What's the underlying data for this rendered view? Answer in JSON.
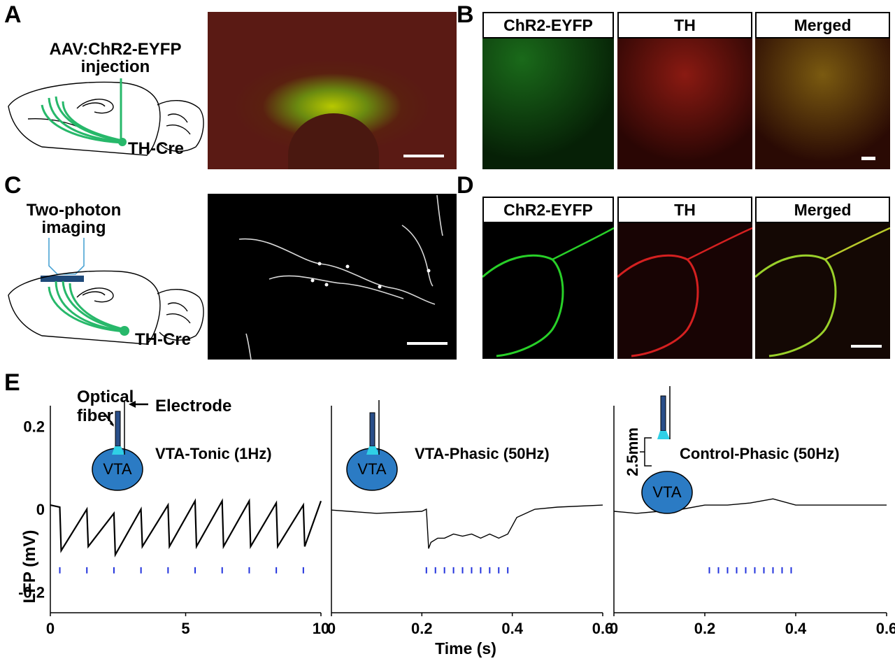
{
  "panel_letters": {
    "A": "A",
    "B": "B",
    "C": "C",
    "D": "D",
    "E": "E"
  },
  "panelA": {
    "injection_line1": "AAV:ChR2-EYFP",
    "injection_line2": "injection",
    "mouse_line": "TH-Cre"
  },
  "panelB": {
    "headers": [
      "ChR2-EYFP",
      "TH",
      "Merged"
    ]
  },
  "panelC": {
    "imaging_line1": "Two-photon",
    "imaging_line2": "imaging",
    "mouse_line": "TH-Cre"
  },
  "panelD": {
    "headers": [
      "ChR2-EYFP",
      "TH",
      "Merged"
    ]
  },
  "panelE": {
    "ylabel": "LFP (mV)",
    "ytick_labels": [
      "0.2",
      "0",
      "-0.2"
    ],
    "xlabel": "Time (s)",
    "optical_fiber_line1": "Optical",
    "optical_fiber_line2": "fiber",
    "electrode_label": "Electrode",
    "vta_label": "VTA",
    "distance_label": "2.5mm",
    "colors": {
      "trace": "#000000",
      "stim": "#2233dd",
      "vta": "#2b7bc4",
      "fiber_tip": "#2fd0e6",
      "fiber": "#2a4f8a"
    }
  },
  "chart_data": [
    {
      "type": "line",
      "title": "VTA-Tonic (1Hz)",
      "xlabel": "",
      "ylabel": "LFP (mV)",
      "xlim": [
        0,
        10
      ],
      "ylim": [
        -0.25,
        0.25
      ],
      "xticks": [
        "0",
        "5",
        "10"
      ],
      "yticks": [
        "0.2",
        "0",
        "-0.2"
      ],
      "stim_times": [
        0.35,
        1.35,
        2.35,
        3.35,
        4.35,
        5.35,
        6.35,
        7.35,
        8.35,
        9.35
      ],
      "series": [
        {
          "x": [
            0,
            0.35,
            0.4,
            1.35,
            1.4,
            2.35,
            2.4,
            3.35,
            3.4,
            4.35,
            4.4,
            5.35,
            5.4,
            6.35,
            6.4,
            7.35,
            7.4,
            8.35,
            8.4,
            9.35,
            9.4,
            10
          ],
          "y": [
            0.01,
            0.005,
            -0.1,
            0.0,
            -0.09,
            -0.01,
            -0.11,
            0.0,
            -0.09,
            0.01,
            -0.09,
            0.02,
            -0.09,
            0.02,
            -0.09,
            0.02,
            -0.09,
            0.015,
            -0.09,
            0.01,
            -0.09,
            0.02
          ]
        }
      ]
    },
    {
      "type": "line",
      "title": "VTA-Phasic (50Hz)",
      "xlabel": "Time (s)",
      "ylabel": "",
      "xlim": [
        0,
        0.6
      ],
      "ylim": [
        -0.25,
        0.25
      ],
      "xticks": [
        "0",
        "0.2",
        "0.4",
        "0.6"
      ],
      "stim_times": [
        0.21,
        0.23,
        0.25,
        0.27,
        0.29,
        0.31,
        0.33,
        0.35,
        0.37,
        0.39
      ],
      "series": [
        {
          "x": [
            0,
            0.1,
            0.2,
            0.21,
            0.215,
            0.22,
            0.235,
            0.25,
            0.27,
            0.29,
            0.31,
            0.33,
            0.35,
            0.37,
            0.39,
            0.41,
            0.45,
            0.5,
            0.6
          ],
          "y": [
            -0.002,
            -0.01,
            -0.005,
            0.0,
            -0.095,
            -0.08,
            -0.07,
            -0.07,
            -0.06,
            -0.065,
            -0.06,
            -0.07,
            -0.06,
            -0.07,
            -0.06,
            -0.02,
            0.0,
            0.005,
            0.01
          ]
        }
      ]
    },
    {
      "type": "line",
      "title": "Control-Phasic (50Hz)",
      "xlabel": "",
      "ylabel": "",
      "xlim": [
        0,
        0.6
      ],
      "ylim": [
        -0.25,
        0.25
      ],
      "xticks": [
        "0",
        "0.2",
        "0.4",
        "0.6"
      ],
      "stim_times": [
        0.21,
        0.23,
        0.25,
        0.27,
        0.29,
        0.31,
        0.33,
        0.35,
        0.37,
        0.39
      ],
      "series": [
        {
          "x": [
            0,
            0.05,
            0.1,
            0.15,
            0.2,
            0.25,
            0.3,
            0.35,
            0.4,
            0.45,
            0.5,
            0.55,
            0.6
          ],
          "y": [
            -0.005,
            -0.01,
            -0.005,
            0.0,
            0.01,
            0.01,
            0.015,
            0.025,
            0.01,
            0.01,
            0.01,
            0.01,
            0.01
          ]
        }
      ]
    }
  ]
}
